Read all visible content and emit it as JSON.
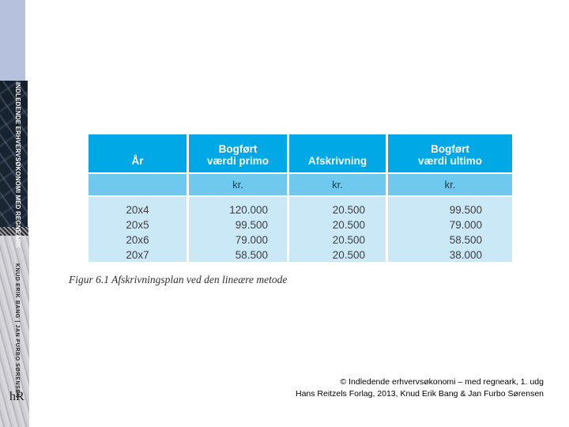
{
  "spine": {
    "title": "INDLEDENDE ERHVERVSØKONOMI MED REGNEARK",
    "authors": "KNUD ERIK BANG | JAN FURBO SØRENSEN",
    "publisher_logo": "hR",
    "colors": {
      "top_block": "#b6c2dd",
      "navy": "#16202c",
      "silver": "#c9c9cd"
    }
  },
  "table": {
    "columns": [
      "År",
      "Bogført\nværdi primo",
      "Afskrivning",
      "Bogført\nværdi ultimo"
    ],
    "unit_row": [
      "",
      "kr.",
      "kr.",
      "kr."
    ],
    "rows": [
      [
        "20x4",
        "120.000",
        "20.500",
        "99.500"
      ],
      [
        "20x5",
        "99.500",
        "20.500",
        "79.000"
      ],
      [
        "20x6",
        "79.000",
        "20.500",
        "58.500"
      ],
      [
        "20x7",
        "58.500",
        "20.500",
        "38.000"
      ]
    ],
    "colors": {
      "header_blue": "#00a9e6",
      "unit_blue": "#6fc9ee",
      "row_blue": "#cbe8f7"
    }
  },
  "caption": "Figur 6.1 Afskrivningsplan ved den lineære metode",
  "footer": {
    "line1": "© Indledende erhvervsøkonomi – med regneark, 1. udg",
    "line2": "Hans Reitzels Forlag, 2013, Knud Erik Bang & Jan Furbo Sørensen"
  }
}
